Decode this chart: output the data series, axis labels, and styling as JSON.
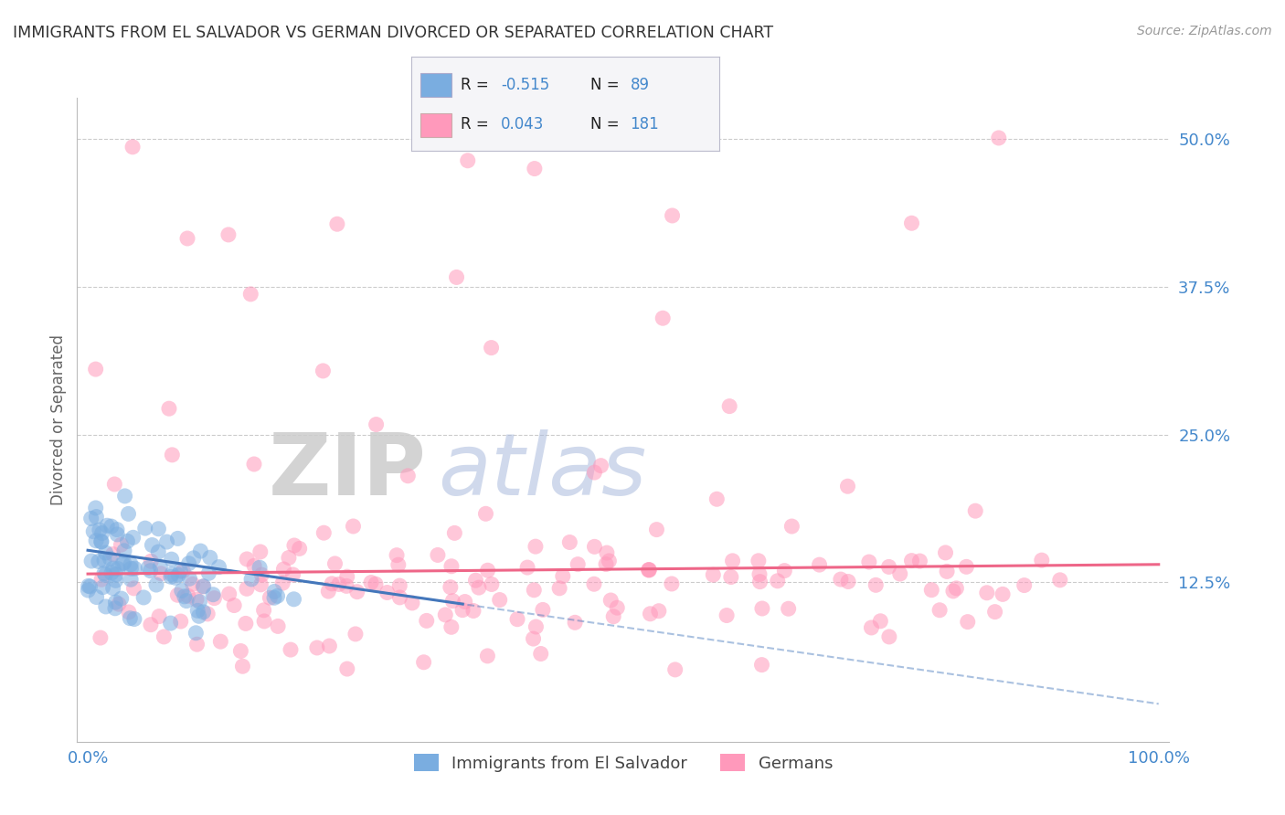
{
  "title": "IMMIGRANTS FROM EL SALVADOR VS GERMAN DIVORCED OR SEPARATED CORRELATION CHART",
  "source": "Source: ZipAtlas.com",
  "ylabel": "Divorced or Separated",
  "xlabel": "",
  "xlim": [
    -0.01,
    1.01
  ],
  "ylim": [
    -0.01,
    0.535
  ],
  "yticks": [
    0.125,
    0.25,
    0.375,
    0.5
  ],
  "ytick_labels": [
    "12.5%",
    "25.0%",
    "37.5%",
    "50.0%"
  ],
  "xticks": [
    0.0,
    1.0
  ],
  "xtick_labels": [
    "0.0%",
    "100.0%"
  ],
  "blue_R": -0.515,
  "blue_N": 89,
  "pink_R": 0.043,
  "pink_N": 181,
  "blue_color": "#7AADE0",
  "pink_color": "#FF99BB",
  "legend_label_blue": "Immigrants from El Salvador",
  "legend_label_pink": "Germans",
  "watermark_zip": "ZIP",
  "watermark_atlas": "atlas",
  "background_color": "#FFFFFF",
  "grid_color": "#CCCCCC",
  "title_color": "#333333",
  "axis_label_color": "#666666",
  "tick_label_color": "#4488CC",
  "legend_R_color": "#4488CC",
  "blue_trend_color": "#4477BB",
  "pink_trend_color": "#EE6688"
}
